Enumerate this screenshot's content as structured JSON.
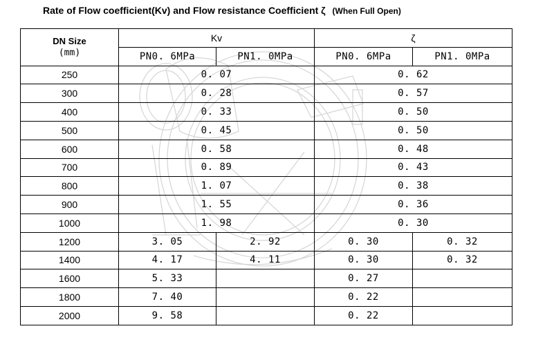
{
  "title": "Rate of Flow coefficient(Kv) and Flow resistance Coefficient ζ",
  "subtitle": "(When Full Open)",
  "header": {
    "dn_size": "DN Size",
    "dn_unit": "(mm)",
    "kv": "Kv",
    "zeta": "ζ",
    "kv_pn06": "PN0. 6MPa",
    "kv_pn10": "PN1. 0MPa",
    "z_pn06": "PN0. 6MPa",
    "z_pn10": "PN1. 0MPa"
  },
  "rows": [
    {
      "dn": "250",
      "kv": "0. 07",
      "zeta": "0. 62"
    },
    {
      "dn": "300",
      "kv": "0. 28",
      "zeta": "0. 57"
    },
    {
      "dn": "400",
      "kv": "0. 33",
      "zeta": "0. 50"
    },
    {
      "dn": "500",
      "kv": "0. 45",
      "zeta": "0. 50"
    },
    {
      "dn": "600",
      "kv": "0. 58",
      "zeta": "0. 48"
    },
    {
      "dn": "700",
      "kv": "0. 89",
      "zeta": "0. 43"
    },
    {
      "dn": "800",
      "kv": "1. 07",
      "zeta": "0. 38"
    },
    {
      "dn": "900",
      "kv": "1. 55",
      "zeta": "0. 36"
    },
    {
      "dn": "1000",
      "kv": "1. 98",
      "zeta": "0. 30"
    },
    {
      "dn": "1200",
      "kv06": "3. 05",
      "kv10": "2. 92",
      "z06": "0. 30",
      "z10": "0. 32"
    },
    {
      "dn": "1400",
      "kv06": "4. 17",
      "kv10": "4. 11",
      "z06": "0. 30",
      "z10": "0. 32"
    },
    {
      "dn": "1600",
      "kv06": "5. 33",
      "z06": "0. 27"
    },
    {
      "dn": "1800",
      "kv06": "7. 40",
      "z06": "0. 22"
    },
    {
      "dn": "2000",
      "kv06": "9. 58",
      "z06": "0. 22"
    }
  ]
}
